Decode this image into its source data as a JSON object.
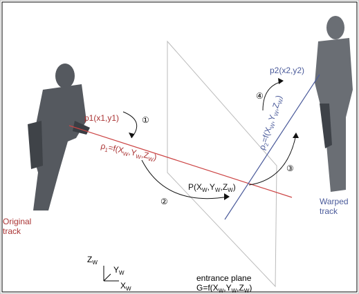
{
  "labels": {
    "p1": "p1(x1,y1)",
    "p2": "p2(x2,y2)",
    "rho1": [
      "ρ",
      "1",
      "=f(X",
      "W",
      ",Y",
      "W",
      ",Z",
      "W",
      ")"
    ],
    "rho2": [
      "ρ",
      "2",
      "=f(X",
      "W",
      ",Y",
      "W",
      ",Z",
      "W",
      ")"
    ],
    "point": [
      "P(X",
      "W",
      ",Y",
      "W",
      ",Z",
      "W",
      ")"
    ],
    "step1": "①",
    "step2": "②",
    "step3": "③",
    "step4": "④",
    "original_track": [
      "Original",
      "track"
    ],
    "warped_track": [
      "Warped",
      "track"
    ],
    "axis_z": [
      "Z",
      "W"
    ],
    "axis_y": [
      "Y",
      "W"
    ],
    "axis_x": [
      "X",
      "W"
    ],
    "plane_title": "entrance plane",
    "plane_formula": [
      "G=f(X",
      "W",
      ",Y",
      "W",
      ",Z",
      "W",
      ")"
    ]
  }
}
